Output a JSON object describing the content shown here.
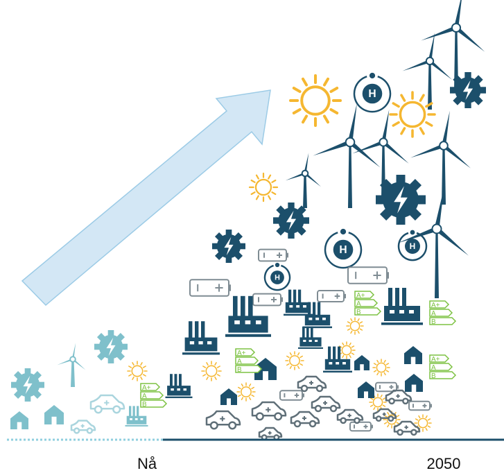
{
  "labels": {
    "start": "Nå",
    "end": "2050"
  },
  "icons": {
    "hydrogen": "H",
    "energy_classes": [
      "A+",
      "A",
      "B"
    ]
  }
}
